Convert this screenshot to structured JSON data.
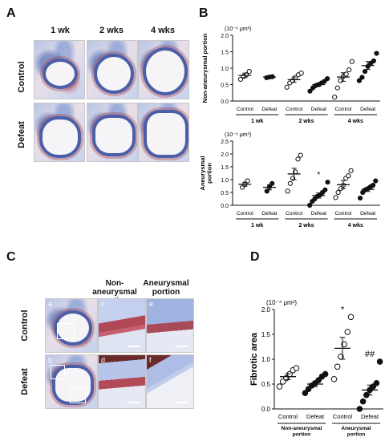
{
  "panel_a": {
    "label": "A",
    "columns": [
      "1 wk",
      "2 wks",
      "4 wks"
    ],
    "rows": [
      "Control",
      "Defeat"
    ]
  },
  "panel_b": {
    "label": "B"
  },
  "panel_c": {
    "label": "C",
    "col_headers": [
      "Non-aneurysmal portion",
      "Aneurysmal portion"
    ],
    "rows": [
      "Control",
      "Defeat"
    ],
    "subpanels": [
      "a",
      "b",
      "c",
      "d",
      "e",
      "f"
    ]
  },
  "panel_d": {
    "label": "D"
  },
  "colors": {
    "marker": "#111111",
    "bar": "#111111"
  },
  "chart_data": [
    {
      "id": "B-top",
      "type": "scatter",
      "unit_label": "(10⁻⁴ μm²)",
      "ylabel": "Non-aneurysmal portion",
      "ylim": [
        0,
        2.0
      ],
      "yticks": [
        "0.0",
        "0.5",
        "1.0",
        "1.5",
        "2.0"
      ],
      "groups": [
        {
          "label": "Control",
          "period": "1 wk",
          "filled": false,
          "mean": 0.78,
          "sem": 0.07,
          "points": [
            0.66,
            0.75,
            0.8,
            0.9
          ]
        },
        {
          "label": "Defeat",
          "period": "1 wk",
          "filled": true,
          "mean": 0.73,
          "sem": 0.02,
          "points": [
            0.71,
            0.73,
            0.74
          ]
        },
        {
          "label": "Control",
          "period": "2 wks",
          "filled": false,
          "mean": 0.65,
          "sem": 0.08,
          "points": [
            0.42,
            0.55,
            0.62,
            0.72,
            0.8,
            0.85
          ]
        },
        {
          "label": "Defeat",
          "period": "2 wks",
          "filled": true,
          "mean": 0.5,
          "sem": 0.05,
          "points": [
            0.3,
            0.4,
            0.47,
            0.5,
            0.55,
            0.6,
            0.68
          ]
        },
        {
          "label": "Control",
          "period": "4 wks",
          "filled": false,
          "mean": 0.73,
          "sem": 0.13,
          "points": [
            0.12,
            0.4,
            0.62,
            0.75,
            0.82,
            0.95,
            1.2
          ]
        },
        {
          "label": "Defeat",
          "period": "4 wks",
          "filled": true,
          "mean": 1.08,
          "sem": 0.12,
          "points": [
            0.62,
            0.72,
            0.9,
            1.05,
            1.15,
            1.22,
            1.45
          ]
        }
      ],
      "periods": [
        "1 wk",
        "2 wks",
        "4 wks"
      ]
    },
    {
      "id": "B-bottom",
      "type": "scatter",
      "unit_label": "(10⁻⁴ μm²)",
      "ylabel": "Aneurysmal portion",
      "ylim": [
        0,
        2.5
      ],
      "yticks": [
        "0.0",
        "0.5",
        "1.0",
        "1.5",
        "2.0",
        "2.5"
      ],
      "groups": [
        {
          "label": "Control",
          "period": "1 wk",
          "filled": false,
          "mean": 0.82,
          "sem": 0.08,
          "points": [
            0.7,
            0.82,
            0.95
          ]
        },
        {
          "label": "Defeat",
          "period": "1 wk",
          "filled": true,
          "mean": 0.7,
          "sem": 0.1,
          "points": [
            0.55,
            0.72,
            0.85
          ]
        },
        {
          "label": "Control",
          "period": "2 wks",
          "filled": false,
          "mean": 1.22,
          "sem": 0.22,
          "points": [
            0.55,
            0.85,
            1.05,
            1.3,
            1.8,
            1.95
          ]
        },
        {
          "label": "Defeat",
          "period": "2 wks",
          "filled": true,
          "mean": 0.38,
          "sem": 0.1,
          "points": [
            0.0,
            0.15,
            0.25,
            0.35,
            0.4,
            0.5,
            0.6,
            0.9
          ],
          "annotation": "*"
        },
        {
          "label": "Control",
          "period": "4 wks",
          "filled": false,
          "mean": 0.8,
          "sem": 0.16,
          "points": [
            0.3,
            0.5,
            0.65,
            0.78,
            1.05,
            1.15,
            1.35
          ]
        },
        {
          "label": "Defeat",
          "period": "4 wks",
          "filled": true,
          "mean": 0.62,
          "sem": 0.08,
          "points": [
            0.28,
            0.5,
            0.6,
            0.65,
            0.72,
            0.78,
            0.95
          ]
        }
      ],
      "periods": [
        "1 wk",
        "2 wks",
        "4 wks"
      ]
    },
    {
      "id": "D",
      "type": "scatter",
      "unit_label": "(10⁻⁴ μm²)",
      "ylabel": "Fibrotic area",
      "ylim": [
        0,
        2.0
      ],
      "yticks": [
        "0.0",
        "0.5",
        "1.0",
        "1.5",
        "2.0"
      ],
      "groups": [
        {
          "label": "Control",
          "period": "Non-aneurysmal portion",
          "filled": false,
          "mean": 0.65,
          "sem": 0.06,
          "points": [
            0.45,
            0.55,
            0.62,
            0.7,
            0.78,
            0.82
          ]
        },
        {
          "label": "Defeat",
          "period": "Non-aneurysmal portion",
          "filled": true,
          "mean": 0.5,
          "sem": 0.05,
          "points": [
            0.32,
            0.4,
            0.47,
            0.52,
            0.58,
            0.65,
            0.7
          ]
        },
        {
          "label": "Control",
          "period": "Aneurysmal portion",
          "filled": false,
          "mean": 1.22,
          "sem": 0.22,
          "points": [
            0.6,
            0.85,
            1.05,
            1.3,
            1.55,
            1.85
          ],
          "annotation": "*"
        },
        {
          "label": "Defeat",
          "period": "Aneurysmal portion",
          "filled": true,
          "mean": 0.38,
          "sem": 0.1,
          "points": [
            0.0,
            0.15,
            0.28,
            0.38,
            0.45,
            0.52,
            0.95
          ],
          "annotation": "##"
        }
      ],
      "periods": [
        "Non-aneurysmal portion",
        "Aneurysmal portion"
      ]
    }
  ]
}
